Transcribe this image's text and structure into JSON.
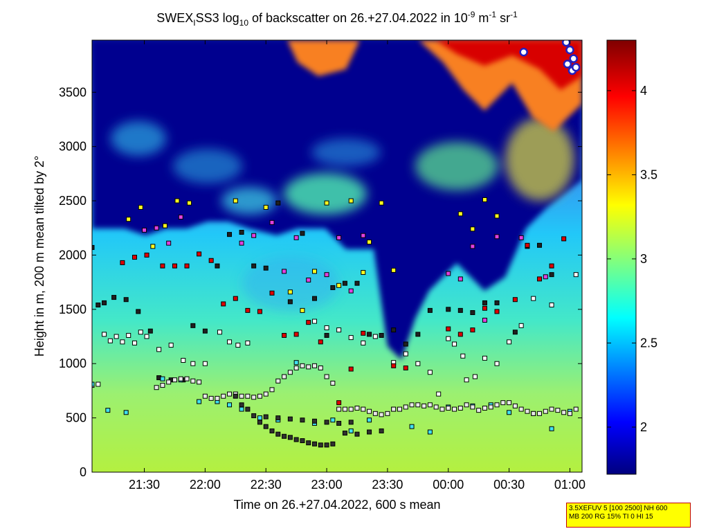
{
  "chart_data": {
    "type": "heatmap",
    "title": {
      "parts": [
        "SWEX",
        "I",
        "SS3 log",
        "10",
        " of backscatter on 26.+27.04.2022 in 10",
        "-9",
        " m",
        "-1",
        " sr",
        "-1"
      ]
    },
    "xlabel": "Time on 26.+27.04.2022, 600 s mean",
    "ylabel": "Height in m, 200 m mean tilted by 2°",
    "x_ticks": [
      "21:30",
      "22:00",
      "22:30",
      "23:00",
      "23:30",
      "00:00",
      "00:30",
      "01:00"
    ],
    "x_tick_hours": [
      21.5,
      22.0,
      22.5,
      23.0,
      23.5,
      24.0,
      24.5,
      25.0
    ],
    "xlim_hours": [
      21.07,
      25.1
    ],
    "y_ticks": [
      0,
      500,
      1000,
      1500,
      2000,
      2500,
      3000,
      3500
    ],
    "ylim": [
      0,
      3980
    ],
    "colorbar": {
      "ticks": [
        "2",
        "2.5",
        "3",
        "3.5",
        "4"
      ],
      "tick_values": [
        2,
        2.5,
        3,
        3.5,
        4
      ],
      "range": [
        1.72,
        4.3
      ],
      "colormap": "jet"
    },
    "layer_series": [
      {
        "marker": "white-square",
        "points": [
          [
            21.07,
            800
          ],
          [
            21.12,
            810
          ],
          [
            21.17,
            1270
          ],
          [
            21.22,
            1210
          ],
          [
            21.27,
            1250
          ],
          [
            21.32,
            1200
          ],
          [
            21.37,
            1260
          ],
          [
            21.42,
            1190
          ],
          [
            21.47,
            1290
          ],
          [
            21.52,
            1250
          ],
          [
            21.62,
            1130
          ],
          [
            21.72,
            1170
          ],
          [
            21.82,
            1030
          ],
          [
            21.9,
            1000
          ],
          [
            22.0,
            1000
          ],
          [
            22.12,
            1290
          ],
          [
            22.2,
            1200
          ],
          [
            22.27,
            1170
          ],
          [
            22.35,
            1190
          ],
          [
            22.9,
            1390
          ],
          [
            23.0,
            1330
          ],
          [
            23.1,
            1310
          ],
          [
            23.2,
            1240
          ],
          [
            23.3,
            1190
          ],
          [
            23.4,
            1250
          ],
          [
            23.55,
            1010
          ],
          [
            23.65,
            1090
          ],
          [
            23.75,
            1000
          ],
          [
            23.85,
            920
          ],
          [
            23.92,
            720
          ],
          [
            24.0,
            1230
          ],
          [
            24.05,
            1180
          ],
          [
            24.12,
            1070
          ],
          [
            24.15,
            850
          ],
          [
            24.22,
            880
          ],
          [
            24.3,
            1050
          ],
          [
            24.4,
            1000
          ],
          [
            24.5,
            1200
          ],
          [
            24.6,
            1350
          ],
          [
            24.7,
            1600
          ],
          [
            24.85,
            1540
          ],
          [
            25.05,
            1820
          ]
        ]
      },
      {
        "marker": "black-square",
        "points": [
          [
            21.07,
            2070
          ],
          [
            21.12,
            1540
          ],
          [
            21.17,
            1560
          ],
          [
            21.25,
            1610
          ],
          [
            21.35,
            1590
          ],
          [
            21.45,
            1480
          ],
          [
            21.55,
            1300
          ],
          [
            21.62,
            870
          ],
          [
            21.72,
            850
          ],
          [
            21.82,
            850
          ],
          [
            21.9,
            1350
          ],
          [
            22.0,
            1300
          ],
          [
            22.1,
            1900
          ],
          [
            22.2,
            2190
          ],
          [
            22.3,
            2210
          ],
          [
            22.4,
            1900
          ],
          [
            22.5,
            1880
          ],
          [
            22.6,
            2480
          ],
          [
            22.7,
            1570
          ],
          [
            22.8,
            2200
          ],
          [
            22.9,
            1600
          ],
          [
            23.0,
            1260
          ],
          [
            23.05,
            1700
          ],
          [
            23.15,
            1740
          ],
          [
            23.25,
            1740
          ],
          [
            23.35,
            1270
          ],
          [
            23.45,
            1260
          ],
          [
            23.55,
            1310
          ],
          [
            23.65,
            1180
          ],
          [
            23.75,
            1270
          ],
          [
            23.85,
            1490
          ],
          [
            24.0,
            1500
          ],
          [
            24.1,
            1490
          ],
          [
            24.2,
            1470
          ],
          [
            24.3,
            1560
          ],
          [
            24.4,
            1560
          ],
          [
            24.55,
            1290
          ],
          [
            24.65,
            2080
          ],
          [
            24.75,
            2090
          ],
          [
            24.85,
            1820
          ]
        ]
      },
      {
        "marker": "red-square",
        "points": [
          [
            21.32,
            1930
          ],
          [
            21.42,
            1980
          ],
          [
            21.52,
            2000
          ],
          [
            21.65,
            1900
          ],
          [
            21.75,
            1900
          ],
          [
            21.85,
            1900
          ],
          [
            21.95,
            2010
          ],
          [
            22.05,
            1950
          ],
          [
            22.15,
            1550
          ],
          [
            22.25,
            1600
          ],
          [
            22.35,
            1490
          ],
          [
            22.45,
            1480
          ],
          [
            22.55,
            1650
          ],
          [
            22.65,
            1260
          ],
          [
            22.75,
            1270
          ],
          [
            22.85,
            1380
          ],
          [
            22.95,
            1200
          ],
          [
            23.1,
            640
          ],
          [
            23.2,
            950
          ],
          [
            23.3,
            1280
          ],
          [
            23.55,
            980
          ],
          [
            23.65,
            960
          ],
          [
            24.0,
            1320
          ],
          [
            24.1,
            1270
          ],
          [
            24.2,
            1310
          ],
          [
            24.3,
            1510
          ],
          [
            24.4,
            1480
          ],
          [
            24.55,
            1590
          ],
          [
            24.65,
            2090
          ],
          [
            24.75,
            1780
          ],
          [
            24.85,
            1900
          ],
          [
            24.95,
            2150
          ]
        ]
      },
      {
        "marker": "magenta-square",
        "points": [
          [
            21.5,
            2230
          ],
          [
            21.6,
            2250
          ],
          [
            21.7,
            2110
          ],
          [
            21.8,
            2350
          ],
          [
            22.3,
            2110
          ],
          [
            22.4,
            2180
          ],
          [
            22.55,
            2300
          ],
          [
            22.65,
            1850
          ],
          [
            22.75,
            2160
          ],
          [
            22.85,
            1770
          ],
          [
            23.0,
            1820
          ],
          [
            23.1,
            2160
          ],
          [
            23.2,
            1670
          ],
          [
            23.3,
            2180
          ],
          [
            24.0,
            1830
          ],
          [
            24.1,
            1780
          ],
          [
            24.2,
            2080
          ],
          [
            24.3,
            1400
          ],
          [
            24.4,
            2170
          ],
          [
            24.6,
            2160
          ],
          [
            24.8,
            1800
          ]
        ]
      },
      {
        "marker": "yellow-square",
        "points": [
          [
            21.37,
            2330
          ],
          [
            21.47,
            2440
          ],
          [
            21.57,
            2080
          ],
          [
            21.67,
            2270
          ],
          [
            21.77,
            2500
          ],
          [
            21.87,
            2480
          ],
          [
            22.25,
            2500
          ],
          [
            22.5,
            2440
          ],
          [
            22.7,
            1660
          ],
          [
            22.8,
            1490
          ],
          [
            22.9,
            1850
          ],
          [
            23.0,
            2480
          ],
          [
            23.1,
            1720
          ],
          [
            23.2,
            2500
          ],
          [
            23.3,
            1840
          ],
          [
            23.35,
            2120
          ],
          [
            23.45,
            2480
          ],
          [
            23.55,
            1860
          ],
          [
            24.1,
            2380
          ],
          [
            24.2,
            2240
          ],
          [
            24.3,
            2510
          ],
          [
            24.4,
            2360
          ]
        ]
      },
      {
        "marker": "cyan-square",
        "points": [
          [
            21.07,
            810
          ],
          [
            21.2,
            570
          ],
          [
            21.35,
            550
          ],
          [
            21.65,
            860
          ],
          [
            21.8,
            850
          ],
          [
            21.95,
            650
          ],
          [
            22.1,
            650
          ],
          [
            22.2,
            620
          ],
          [
            22.3,
            580
          ],
          [
            22.45,
            500
          ],
          [
            22.6,
            480
          ],
          [
            22.75,
            1010
          ],
          [
            22.9,
            450
          ],
          [
            23.05,
            480
          ],
          [
            23.2,
            380
          ],
          [
            23.35,
            480
          ],
          [
            23.55,
            580
          ],
          [
            23.7,
            420
          ],
          [
            23.85,
            370
          ],
          [
            24.0,
            600
          ],
          [
            24.2,
            610
          ],
          [
            24.35,
            620
          ],
          [
            24.5,
            550
          ],
          [
            24.7,
            540
          ],
          [
            24.85,
            400
          ],
          [
            25.0,
            560
          ]
        ]
      },
      {
        "marker": "black-bordered-white-square",
        "points": [
          [
            21.6,
            780
          ],
          [
            21.65,
            800
          ],
          [
            21.7,
            830
          ],
          [
            21.75,
            850
          ],
          [
            21.8,
            860
          ],
          [
            21.85,
            860
          ],
          [
            21.9,
            840
          ],
          [
            21.95,
            830
          ],
          [
            22.0,
            700
          ],
          [
            22.05,
            680
          ],
          [
            22.1,
            680
          ],
          [
            22.15,
            700
          ],
          [
            22.2,
            720
          ],
          [
            22.25,
            720
          ],
          [
            22.3,
            700
          ],
          [
            22.35,
            700
          ],
          [
            22.4,
            690
          ],
          [
            22.45,
            700
          ],
          [
            22.5,
            720
          ],
          [
            22.55,
            760
          ],
          [
            22.6,
            840
          ],
          [
            22.65,
            880
          ],
          [
            22.7,
            920
          ],
          [
            22.75,
            960
          ],
          [
            22.8,
            980
          ],
          [
            22.85,
            970
          ],
          [
            22.9,
            980
          ],
          [
            22.95,
            960
          ],
          [
            23.0,
            880
          ],
          [
            23.05,
            820
          ],
          [
            23.1,
            580
          ],
          [
            23.15,
            580
          ],
          [
            23.2,
            580
          ],
          [
            23.25,
            590
          ],
          [
            23.3,
            580
          ],
          [
            23.35,
            560
          ],
          [
            23.4,
            540
          ],
          [
            23.45,
            530
          ],
          [
            23.5,
            540
          ],
          [
            23.55,
            580
          ],
          [
            23.6,
            580
          ],
          [
            23.65,
            600
          ],
          [
            23.7,
            620
          ],
          [
            23.75,
            620
          ],
          [
            23.8,
            610
          ],
          [
            23.85,
            620
          ],
          [
            23.9,
            600
          ],
          [
            23.95,
            580
          ],
          [
            24.0,
            590
          ],
          [
            24.05,
            580
          ],
          [
            24.1,
            590
          ],
          [
            24.15,
            620
          ],
          [
            24.2,
            600
          ],
          [
            24.25,
            570
          ],
          [
            24.3,
            590
          ],
          [
            24.35,
            600
          ],
          [
            24.4,
            620
          ],
          [
            24.45,
            640
          ],
          [
            24.5,
            640
          ],
          [
            24.55,
            610
          ],
          [
            24.6,
            580
          ],
          [
            24.65,
            560
          ],
          [
            24.7,
            540
          ],
          [
            24.75,
            540
          ],
          [
            24.8,
            560
          ],
          [
            24.85,
            580
          ],
          [
            24.9,
            570
          ],
          [
            24.95,
            550
          ],
          [
            25.0,
            540
          ],
          [
            25.05,
            580
          ]
        ]
      },
      {
        "marker": "black-line-squares",
        "points": [
          [
            22.25,
            700
          ],
          [
            22.3,
            620
          ],
          [
            22.35,
            580
          ],
          [
            22.4,
            520
          ],
          [
            22.45,
            460
          ],
          [
            22.5,
            420
          ],
          [
            22.55,
            380
          ],
          [
            22.6,
            350
          ],
          [
            22.65,
            330
          ],
          [
            22.7,
            320
          ],
          [
            22.75,
            300
          ],
          [
            22.8,
            290
          ],
          [
            22.85,
            270
          ],
          [
            22.9,
            260
          ],
          [
            22.95,
            250
          ],
          [
            23.0,
            250
          ],
          [
            23.05,
            260
          ],
          [
            22.5,
            510
          ],
          [
            22.6,
            500
          ],
          [
            22.7,
            490
          ],
          [
            22.8,
            480
          ],
          [
            22.9,
            470
          ],
          [
            23.0,
            460
          ],
          [
            23.1,
            450
          ],
          [
            23.2,
            460
          ],
          [
            23.15,
            360
          ],
          [
            23.25,
            350
          ],
          [
            23.35,
            370
          ],
          [
            23.45,
            380
          ]
        ]
      }
    ],
    "high_cloud_markers": [
      [
        24.62,
        3870
      ],
      [
        24.97,
        3960
      ],
      [
        25.0,
        3890
      ],
      [
        25.03,
        3810
      ],
      [
        24.98,
        3760
      ],
      [
        25.02,
        3700
      ],
      [
        25.05,
        3730
      ]
    ]
  },
  "info_box": {
    "line1": "3.5XEFUV 5 [100 2500] NH 600",
    "line2": "MB 200 RG 15% TI 0 HI 15"
  }
}
